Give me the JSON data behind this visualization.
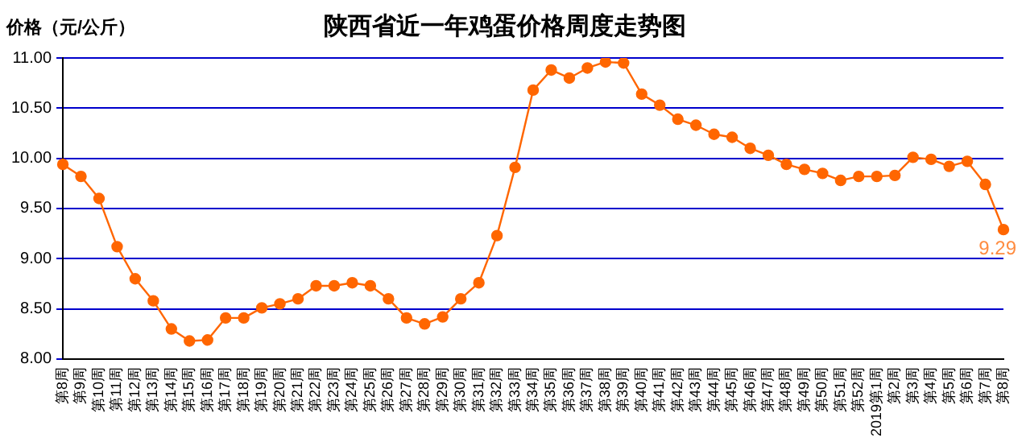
{
  "chart_data": {
    "type": "line",
    "title": "陕西省近一年鸡蛋价格周度走势图",
    "ylabel": "价格（元/公斤）",
    "categories": [
      "第8周",
      "第9周",
      "第10周",
      "第11周",
      "第12周",
      "第13周",
      "第14周",
      "第15周",
      "第16周",
      "第17周",
      "第18周",
      "第19周",
      "第20周",
      "第21周",
      "第22周",
      "第23周",
      "第24周",
      "第25周",
      "第26周",
      "第27周",
      "第28周",
      "第29周",
      "第30周",
      "第31周",
      "第32周",
      "第33周",
      "第34周",
      "第35周",
      "第36周",
      "第37周",
      "第38周",
      "第39周",
      "第40周",
      "第41周",
      "第42周",
      "第43周",
      "第44周",
      "第45周",
      "第46周",
      "第47周",
      "第48周",
      "第49周",
      "第50周",
      "第51周",
      "第52周",
      "2019第1周",
      "第2周",
      "第3周",
      "第4周",
      "第5周",
      "第6周",
      "第7周",
      "第8周"
    ],
    "series": [
      {
        "color": "#ff6600",
        "values": [
          9.94,
          9.82,
          9.6,
          9.12,
          8.8,
          8.58,
          8.3,
          8.18,
          8.19,
          8.41,
          8.41,
          8.51,
          8.55,
          8.6,
          8.73,
          8.73,
          8.76,
          8.73,
          8.6,
          8.41,
          8.35,
          8.42,
          8.6,
          8.76,
          9.23,
          9.91,
          10.68,
          10.88,
          10.8,
          10.9,
          10.96,
          10.95,
          10.64,
          10.53,
          10.39,
          10.33,
          10.24,
          10.21,
          10.1,
          10.03,
          9.94,
          9.89,
          9.85,
          9.78,
          9.82,
          9.82,
          9.83,
          10.01,
          9.99,
          9.92,
          9.97,
          9.74,
          9.29
        ],
        "value_labels": [
          null,
          null,
          null,
          null,
          null,
          null,
          null,
          null,
          null,
          null,
          null,
          null,
          null,
          null,
          null,
          null,
          null,
          null,
          null,
          null,
          null,
          null,
          null,
          null,
          null,
          null,
          null,
          null,
          null,
          null,
          null,
          null,
          null,
          null,
          null,
          null,
          null,
          null,
          null,
          null,
          null,
          null,
          null,
          null,
          null,
          null,
          null,
          null,
          null,
          null,
          null,
          null,
          "9.29"
        ]
      }
    ],
    "ylim": [
      8,
      11
    ],
    "yticks": [
      {
        "value": 8,
        "label": "8.00"
      },
      {
        "value": 8.5,
        "label": "8.50"
      },
      {
        "value": 9,
        "label": "9.00"
      },
      {
        "value": 9.5,
        "label": "9.50"
      },
      {
        "value": 10,
        "label": "10.00"
      },
      {
        "value": 10.5,
        "label": "10.50"
      },
      {
        "value": 11,
        "label": "11.00"
      }
    ],
    "grid": "y",
    "legend": false,
    "marker": "circle",
    "line_style": "solid"
  }
}
